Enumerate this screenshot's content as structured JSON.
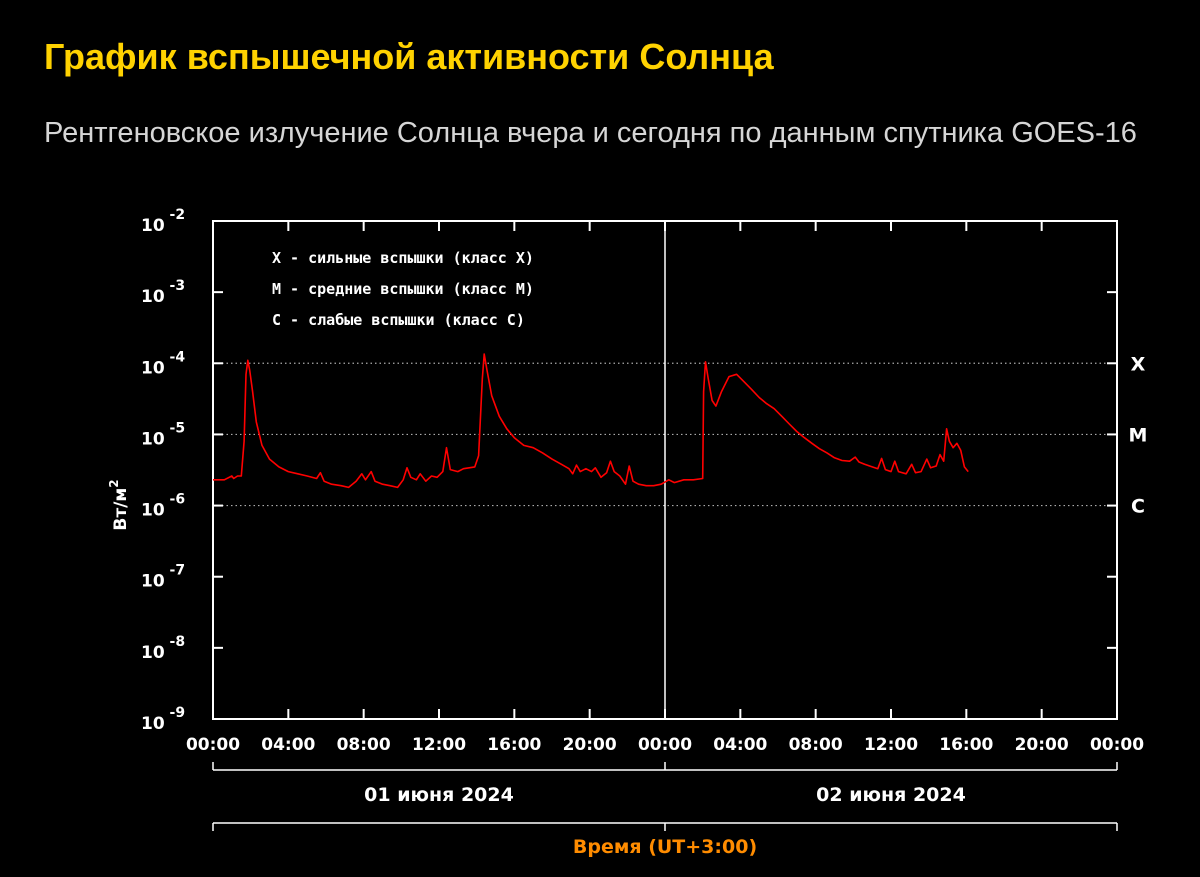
{
  "title": "График вспышечной активности Солнца",
  "subtitle": "Рентгеновское излучение Солнца вчера и сегодня по данным спутника GOES-16",
  "colors": {
    "title": "#ffd200",
    "series": "#ff0000",
    "xlabel": "#ff8c00",
    "background": "#000000"
  },
  "chart_data": {
    "type": "line",
    "ylabel": "Вт/м",
    "ylabel_superscript": "2",
    "xlabel": "Время (UT+3:00)",
    "y_scale": "log",
    "ylim": [
      1e-09,
      0.01
    ],
    "y_ticks": [
      {
        "base": "10",
        "exp": "-2",
        "value": 0.01
      },
      {
        "base": "10",
        "exp": "-3",
        "value": 0.001
      },
      {
        "base": "10",
        "exp": "-4",
        "value": 0.0001
      },
      {
        "base": "10",
        "exp": "-5",
        "value": 1e-05
      },
      {
        "base": "10",
        "exp": "-6",
        "value": 1e-06
      },
      {
        "base": "10",
        "exp": "-7",
        "value": 1e-07
      },
      {
        "base": "10",
        "exp": "-8",
        "value": 1e-08
      },
      {
        "base": "10",
        "exp": "-9",
        "value": 1e-09
      }
    ],
    "x_unit": "hours since 01 июня 2024 00:00",
    "xlim": [
      0,
      48
    ],
    "x_ticks": [
      "00:00",
      "04:00",
      "08:00",
      "12:00",
      "16:00",
      "20:00",
      "00:00",
      "04:00",
      "08:00",
      "12:00",
      "16:00",
      "20:00",
      "00:00"
    ],
    "dates": [
      {
        "label": "01 июня 2024",
        "from": 0,
        "to": 24
      },
      {
        "label": "02 июня 2024",
        "from": 24,
        "to": 48
      }
    ],
    "day_divider_x": 24,
    "flare_classes": [
      {
        "label": "X",
        "value": 0.0001
      },
      {
        "label": "M",
        "value": 1e-05
      },
      {
        "label": "C",
        "value": 1e-06
      }
    ],
    "legend": [
      "X - сильные вспышки (класс X)",
      "M - средние вспышки (класс M)",
      "C - слабые вспышки (класс C)"
    ],
    "series": [
      {
        "points": [
          [
            0.0,
            2.3e-06
          ],
          [
            0.6,
            2.3e-06
          ],
          [
            1.0,
            2.6e-06
          ],
          [
            1.1,
            2.4e-06
          ],
          [
            1.3,
            2.6e-06
          ],
          [
            1.5,
            2.6e-06
          ],
          [
            1.65,
            8e-06
          ],
          [
            1.75,
            7e-05
          ],
          [
            1.85,
            0.00011
          ],
          [
            1.95,
            8e-05
          ],
          [
            2.1,
            4e-05
          ],
          [
            2.3,
            1.5e-05
          ],
          [
            2.6,
            7e-06
          ],
          [
            3.0,
            4.5e-06
          ],
          [
            3.5,
            3.5e-06
          ],
          [
            4.0,
            3e-06
          ],
          [
            4.5,
            2.8e-06
          ],
          [
            5.0,
            2.6e-06
          ],
          [
            5.5,
            2.4e-06
          ],
          [
            5.7,
            2.9e-06
          ],
          [
            5.9,
            2.2e-06
          ],
          [
            6.3,
            2e-06
          ],
          [
            6.8,
            1.9e-06
          ],
          [
            7.2,
            1.8e-06
          ],
          [
            7.6,
            2.2e-06
          ],
          [
            7.9,
            2.8e-06
          ],
          [
            8.1,
            2.3e-06
          ],
          [
            8.4,
            3e-06
          ],
          [
            8.6,
            2.2e-06
          ],
          [
            9.0,
            2e-06
          ],
          [
            9.4,
            1.9e-06
          ],
          [
            9.8,
            1.8e-06
          ],
          [
            10.1,
            2.3e-06
          ],
          [
            10.3,
            3.4e-06
          ],
          [
            10.5,
            2.5e-06
          ],
          [
            10.8,
            2.3e-06
          ],
          [
            11.0,
            2.8e-06
          ],
          [
            11.3,
            2.2e-06
          ],
          [
            11.6,
            2.6e-06
          ],
          [
            11.9,
            2.5e-06
          ],
          [
            12.2,
            3e-06
          ],
          [
            12.4,
            6.5e-06
          ],
          [
            12.6,
            3.2e-06
          ],
          [
            13.0,
            3e-06
          ],
          [
            13.3,
            3.3e-06
          ],
          [
            13.9,
            3.5e-06
          ],
          [
            14.1,
            5e-06
          ],
          [
            14.3,
            6e-05
          ],
          [
            14.4,
            0.000135
          ],
          [
            14.55,
            8e-05
          ],
          [
            14.8,
            3.5e-05
          ],
          [
            15.2,
            1.8e-05
          ],
          [
            15.6,
            1.2e-05
          ],
          [
            16.0,
            9e-06
          ],
          [
            16.5,
            7e-06
          ],
          [
            17.0,
            6.5e-06
          ],
          [
            17.5,
            5.5e-06
          ],
          [
            18.0,
            4.5e-06
          ],
          [
            18.5,
            3.8e-06
          ],
          [
            18.9,
            3.3e-06
          ],
          [
            19.1,
            2.8e-06
          ],
          [
            19.3,
            3.7e-06
          ],
          [
            19.5,
            3e-06
          ],
          [
            19.8,
            3.3e-06
          ],
          [
            20.1,
            3e-06
          ],
          [
            20.3,
            3.4e-06
          ],
          [
            20.6,
            2.5e-06
          ],
          [
            20.9,
            2.9e-06
          ],
          [
            21.1,
            4.2e-06
          ],
          [
            21.3,
            3e-06
          ],
          [
            21.6,
            2.6e-06
          ],
          [
            21.9,
            2e-06
          ],
          [
            22.1,
            3.6e-06
          ],
          [
            22.3,
            2.2e-06
          ],
          [
            22.6,
            2e-06
          ],
          [
            23.0,
            1.9e-06
          ],
          [
            23.4,
            1.9e-06
          ],
          [
            23.8,
            2e-06
          ],
          [
            24.2,
            2.3e-06
          ],
          [
            24.5,
            2.1e-06
          ],
          [
            25.0,
            2.3e-06
          ],
          [
            25.5,
            2.3e-06
          ],
          [
            26.0,
            2.4e-06
          ],
          [
            26.05,
            4e-05
          ],
          [
            26.15,
            0.000105
          ],
          [
            26.3,
            6e-05
          ],
          [
            26.5,
            3e-05
          ],
          [
            26.7,
            2.5e-05
          ],
          [
            27.0,
            4e-05
          ],
          [
            27.4,
            6.5e-05
          ],
          [
            27.8,
            7e-05
          ],
          [
            28.2,
            5.5e-05
          ],
          [
            28.6,
            4.3e-05
          ],
          [
            29.0,
            3.3e-05
          ],
          [
            29.4,
            2.7e-05
          ],
          [
            29.8,
            2.3e-05
          ],
          [
            30.2,
            1.8e-05
          ],
          [
            30.6,
            1.4e-05
          ],
          [
            31.0,
            1.1e-05
          ],
          [
            31.4,
            9e-06
          ],
          [
            31.8,
            7.5e-06
          ],
          [
            32.2,
            6.3e-06
          ],
          [
            32.6,
            5.5e-06
          ],
          [
            33.0,
            4.7e-06
          ],
          [
            33.4,
            4.3e-06
          ],
          [
            33.8,
            4.2e-06
          ],
          [
            34.1,
            4.8e-06
          ],
          [
            34.3,
            4.1e-06
          ],
          [
            34.6,
            3.8e-06
          ],
          [
            35.0,
            3.5e-06
          ],
          [
            35.3,
            3.3e-06
          ],
          [
            35.5,
            4.6e-06
          ],
          [
            35.7,
            3.2e-06
          ],
          [
            36.0,
            3e-06
          ],
          [
            36.2,
            4.2e-06
          ],
          [
            36.4,
            3e-06
          ],
          [
            36.8,
            2.8e-06
          ],
          [
            37.1,
            3.8e-06
          ],
          [
            37.3,
            2.9e-06
          ],
          [
            37.6,
            3e-06
          ],
          [
            37.9,
            4.5e-06
          ],
          [
            38.1,
            3.4e-06
          ],
          [
            38.4,
            3.6e-06
          ],
          [
            38.6,
            5.2e-06
          ],
          [
            38.8,
            4.2e-06
          ],
          [
            38.95,
            1.2e-05
          ],
          [
            39.1,
            8e-06
          ],
          [
            39.3,
            6.5e-06
          ],
          [
            39.5,
            7.5e-06
          ],
          [
            39.7,
            6e-06
          ],
          [
            39.9,
            3.5e-06
          ],
          [
            40.1,
            3e-06
          ]
        ]
      }
    ]
  }
}
